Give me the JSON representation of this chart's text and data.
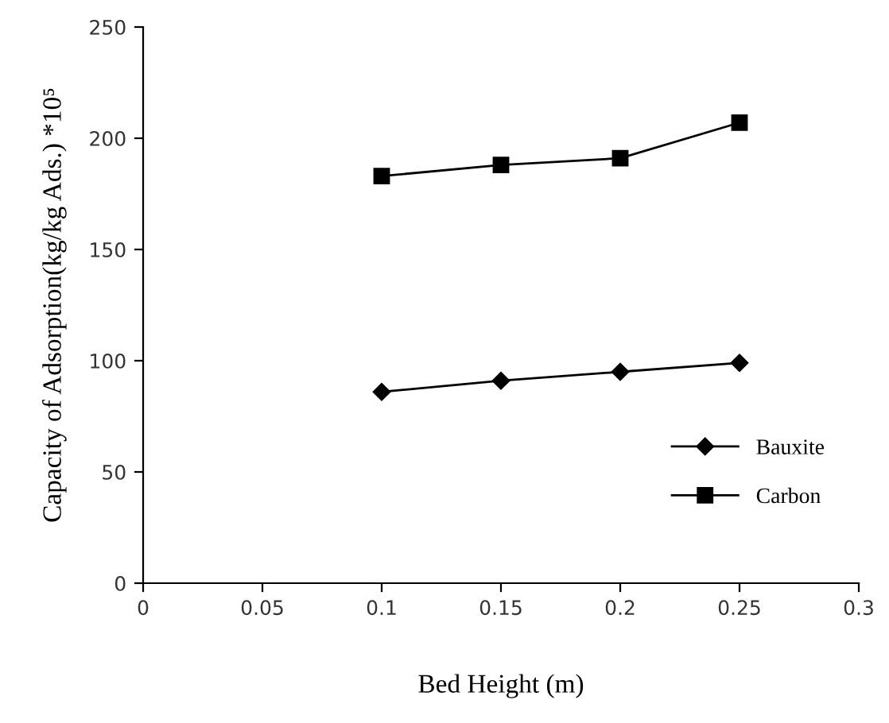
{
  "chart_data": {
    "type": "line",
    "xlabel": "Bed Height (m)",
    "ylabel": "Capacity of Adsorption(kg/kg Ads.) *10⁵",
    "x": [
      0.1,
      0.15,
      0.2,
      0.25
    ],
    "series": [
      {
        "name": "Bauxite",
        "color": "#000000",
        "marker": "diamond",
        "values": [
          86,
          91,
          95,
          99
        ]
      },
      {
        "name": "Carbon",
        "color": "#000000",
        "marker": "square",
        "values": [
          183,
          188,
          191,
          207
        ]
      }
    ],
    "xlim": [
      0,
      0.3
    ],
    "xticks": [
      0,
      0.05,
      0.1,
      0.15,
      0.2,
      0.25,
      {
        "value": 0.3,
        "label": "0.3"
      }
    ],
    "ylim": [
      0,
      250
    ],
    "yticks": [
      0,
      50,
      100,
      150,
      200,
      250
    ],
    "grid": false,
    "legend": "bottom right",
    "line_style": "solid"
  }
}
